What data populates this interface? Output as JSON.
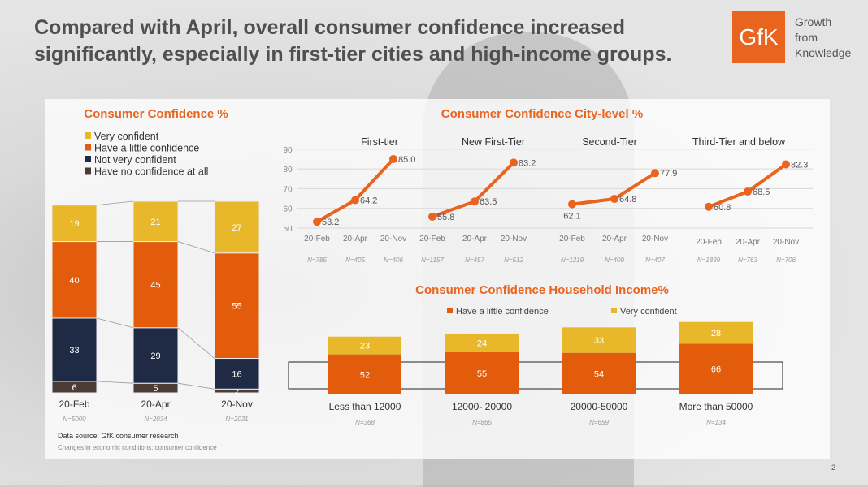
{
  "header": {
    "title": "Compared with April, overall consumer confidence increased significantly, especially in first-tier cities and high-income groups.",
    "logo_text": "GfK",
    "tagline": [
      "Growth",
      "from",
      "Knowledge"
    ]
  },
  "footer": {
    "source": "Data source: GfK consumer research",
    "note": "Changes in economic conditions: consumer confidence",
    "page": "2"
  },
  "chart_data": [
    {
      "type": "bar",
      "stacked": true,
      "title": "Consumer Confidence %",
      "categories": [
        "20-Feb",
        "20-Apr",
        "20-Nov"
      ],
      "n": [
        "N=5000",
        "N=2034",
        "N=2031"
      ],
      "series": [
        {
          "name": "Have no confidence at all",
          "color": "#4a3b35",
          "values": [
            6,
            5,
            2
          ]
        },
        {
          "name": "Not very confident",
          "color": "#1f2a44",
          "values": [
            33,
            29,
            16
          ]
        },
        {
          "name": "Have a little confidence",
          "color": "#e35c0c",
          "values": [
            40,
            45,
            55
          ]
        },
        {
          "name": "Very confident",
          "color": "#e8b72a",
          "values": [
            19,
            21,
            27
          ]
        }
      ]
    },
    {
      "type": "line",
      "title": "Consumer Confidence  City-level %",
      "ylim": [
        50,
        90
      ],
      "yticks": [
        50,
        60,
        70,
        80,
        90
      ],
      "x": [
        "20-Feb",
        "20-Apr",
        "20-Nov"
      ],
      "series": [
        {
          "name": "First-tier",
          "values": [
            53.2,
            64.2,
            85.0
          ],
          "labels": [
            "53.2",
            "64.2",
            "85.0"
          ],
          "n": [
            "N=785",
            "N=405",
            "N=406"
          ]
        },
        {
          "name": "New First-Tier",
          "values": [
            55.8,
            63.5,
            83.2
          ],
          "labels": [
            "55.8",
            "63.5",
            "83.2"
          ],
          "n": [
            "N=1157",
            "N=457",
            "N=512"
          ]
        },
        {
          "name": "Second-Tier",
          "values": [
            62.1,
            64.8,
            77.9
          ],
          "labels": [
            "62.1",
            "64.8",
            "77.9"
          ],
          "n": [
            "N=1219",
            "N=409",
            "N=407"
          ]
        },
        {
          "name": "Third-Tier and below",
          "values": [
            60.8,
            68.5,
            82.3
          ],
          "labels": [
            "60.8",
            "68.5",
            "82.3"
          ],
          "n": [
            "N=1839",
            "N=763",
            "N=706"
          ]
        }
      ],
      "color": "#e8641f"
    },
    {
      "type": "bar",
      "stacked": true,
      "title": "Consumer Confidence  Household Income%",
      "categories": [
        "Less than 12000",
        "12000- 20000",
        "20000-50000",
        "More than 50000"
      ],
      "n": [
        "N=368",
        "N=865",
        "N=659",
        "N=134"
      ],
      "series": [
        {
          "name": "Have a little confidence",
          "color": "#e35c0c",
          "values": [
            52,
            55,
            54,
            66
          ]
        },
        {
          "name": "Very confident",
          "color": "#e8b72a",
          "values": [
            23,
            24,
            33,
            28
          ]
        }
      ]
    }
  ]
}
